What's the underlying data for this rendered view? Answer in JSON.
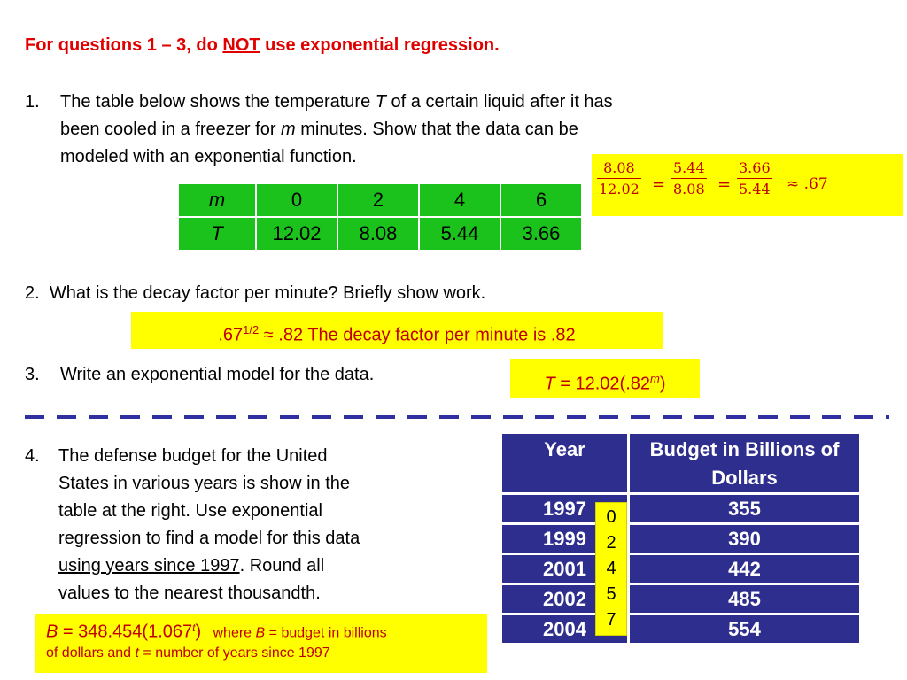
{
  "heading": {
    "prefix": "For questions 1 – 3, do ",
    "underlined": "NOT",
    "suffix": " use exponential regression."
  },
  "q1": {
    "number": "1.",
    "line1a": "The table below shows the temperature ",
    "line1var": "T",
    "line1b": " of a certain liquid after it has",
    "line2a": "been cooled in a freezer for ",
    "line2var": "m",
    "line2b": " minutes. Show that the data can be",
    "line3": "modeled with an exponential function."
  },
  "table1": {
    "row1": [
      "m",
      "0",
      "2",
      "4",
      "6"
    ],
    "row2": [
      "T",
      "12.02",
      "8.08",
      "5.44",
      "3.66"
    ]
  },
  "ratios": {
    "f1num": "8.08",
    "f1den": "12.02",
    "eq": "=",
    "f2num": "5.44",
    "f2den": "8.08",
    "f3num": "3.66",
    "f3den": "5.44",
    "approx": "≈ .67"
  },
  "q2": {
    "number": "2.",
    "text": "What is the decay factor per minute? Briefly show work."
  },
  "ans2": {
    "base": ".67",
    "exp": "1/2",
    "rest": " ≈ .82   The decay factor per minute is .82"
  },
  "q3": {
    "number": "3.",
    "text": "Write an exponential model for the data."
  },
  "ans3": {
    "var": "T",
    "mid": " = 12.02(.82",
    "exp": "m",
    "end": ")"
  },
  "q4": {
    "number": "4.",
    "lines": [
      "The defense budget for the United",
      "States in various years is show in the",
      "table at the right.  Use exponential",
      "regression to find a model for this data"
    ],
    "line5u": "using years since 1997",
    "line5b": ".  Round all",
    "line6": "values to the nearest thousandth."
  },
  "table2": {
    "headers": [
      "Year",
      "Budget in Billions of Dollars"
    ],
    "rows": [
      [
        "1997",
        "355"
      ],
      [
        "1999",
        "390"
      ],
      [
        "2001",
        "442"
      ],
      [
        "2002",
        "485"
      ],
      [
        "2004",
        "554"
      ]
    ]
  },
  "years_since": [
    "0",
    "2",
    "4",
    "5",
    "7"
  ],
  "ans4": {
    "var": "B",
    "eq": " = 348.454(1.067",
    "exp": "t",
    "close": ")",
    "where1": "where ",
    "wvar1": "B",
    "where2": " = budget in billions",
    "line2a": "of dollars and ",
    "wvar2": "t",
    "line2b": " = number of years since 1997"
  },
  "colors": {
    "accent_red": "#c00000",
    "heading_red": "#e00000",
    "highlight": "#ffff00",
    "table_green": "#1bc21b",
    "table_navy": "#2e2e8e",
    "dash_blue": "#2f2fa0"
  }
}
